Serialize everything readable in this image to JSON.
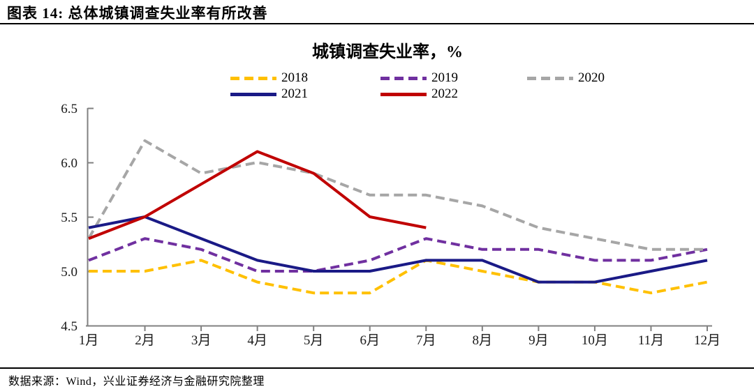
{
  "figure": {
    "title": "图表 14: 总体城镇调查失业率有所改善",
    "source_note": "数据来源：Wind，兴业证券经济与金融研究院整理"
  },
  "chart_data": {
    "type": "line",
    "title": "城镇调查失业率，%",
    "categories": [
      "1月",
      "2月",
      "3月",
      "4月",
      "5月",
      "6月",
      "7月",
      "8月",
      "9月",
      "10月",
      "11月",
      "12月"
    ],
    "ylim": [
      4.5,
      6.5
    ],
    "ytick_values": [
      6.5,
      6.0,
      5.5,
      5.0,
      4.5
    ],
    "ytick_labels": [
      "6.5",
      "6.0",
      "5.5",
      "5.0",
      "4.5"
    ],
    "grid": false,
    "legend_position": "top",
    "axis_color": "#808080",
    "text_color": "#1a1a1a",
    "series": [
      {
        "name": "2018",
        "color": "#FFC000",
        "style": "dashed",
        "values": [
          5.0,
          5.0,
          5.1,
          4.9,
          4.8,
          4.8,
          5.1,
          5.0,
          4.9,
          4.9,
          4.8,
          4.9
        ]
      },
      {
        "name": "2019",
        "color": "#7030A0",
        "style": "dashed",
        "values": [
          5.1,
          5.3,
          5.2,
          5.0,
          5.0,
          5.1,
          5.3,
          5.2,
          5.2,
          5.1,
          5.1,
          5.2
        ]
      },
      {
        "name": "2020",
        "color": "#A6A6A6",
        "style": "dashed",
        "values": [
          5.3,
          6.2,
          5.9,
          6.0,
          5.9,
          5.7,
          5.7,
          5.6,
          5.4,
          5.3,
          5.2,
          5.2
        ]
      },
      {
        "name": "2021",
        "color": "#1A1A86",
        "style": "solid",
        "values": [
          5.4,
          5.5,
          5.3,
          5.1,
          5.0,
          5.0,
          5.1,
          5.1,
          4.9,
          4.9,
          5.0,
          5.1
        ]
      },
      {
        "name": "2022",
        "color": "#C00000",
        "style": "solid",
        "values": [
          5.3,
          5.5,
          5.8,
          6.1,
          5.9,
          5.5,
          5.4,
          null,
          null,
          null,
          null,
          null
        ]
      }
    ]
  }
}
